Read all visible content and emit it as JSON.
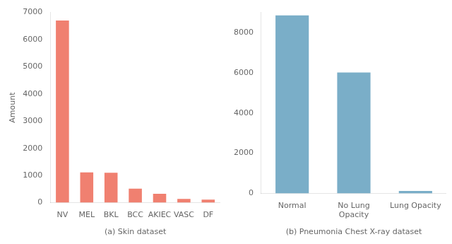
{
  "chart_data": [
    {
      "type": "bar",
      "categories": [
        "NV",
        "MEL",
        "BKL",
        "BCC",
        "AKIEC",
        "VASC",
        "DF"
      ],
      "values": [
        6705,
        1113,
        1099,
        514,
        327,
        142,
        115
      ],
      "color": "#F08070",
      "ylabel": "Amount",
      "xlabel": "(a) Skin dataset",
      "ylim": [
        0,
        7000
      ],
      "yticks": [
        0,
        1000,
        2000,
        3000,
        4000,
        5000,
        6000,
        7000
      ],
      "grid": false
    },
    {
      "type": "bar",
      "categories": [
        "Normal",
        "No Lung\nOpacity",
        "Lung Opacity"
      ],
      "values": [
        8851,
        6012,
        120
      ],
      "color": "#7aaec8",
      "xlabel": "(b) Pneumonia Chest X-ray dataset",
      "ylim": [
        0,
        9000
      ],
      "yticks": [
        0,
        2000,
        4000,
        6000,
        8000
      ],
      "grid": false
    }
  ]
}
